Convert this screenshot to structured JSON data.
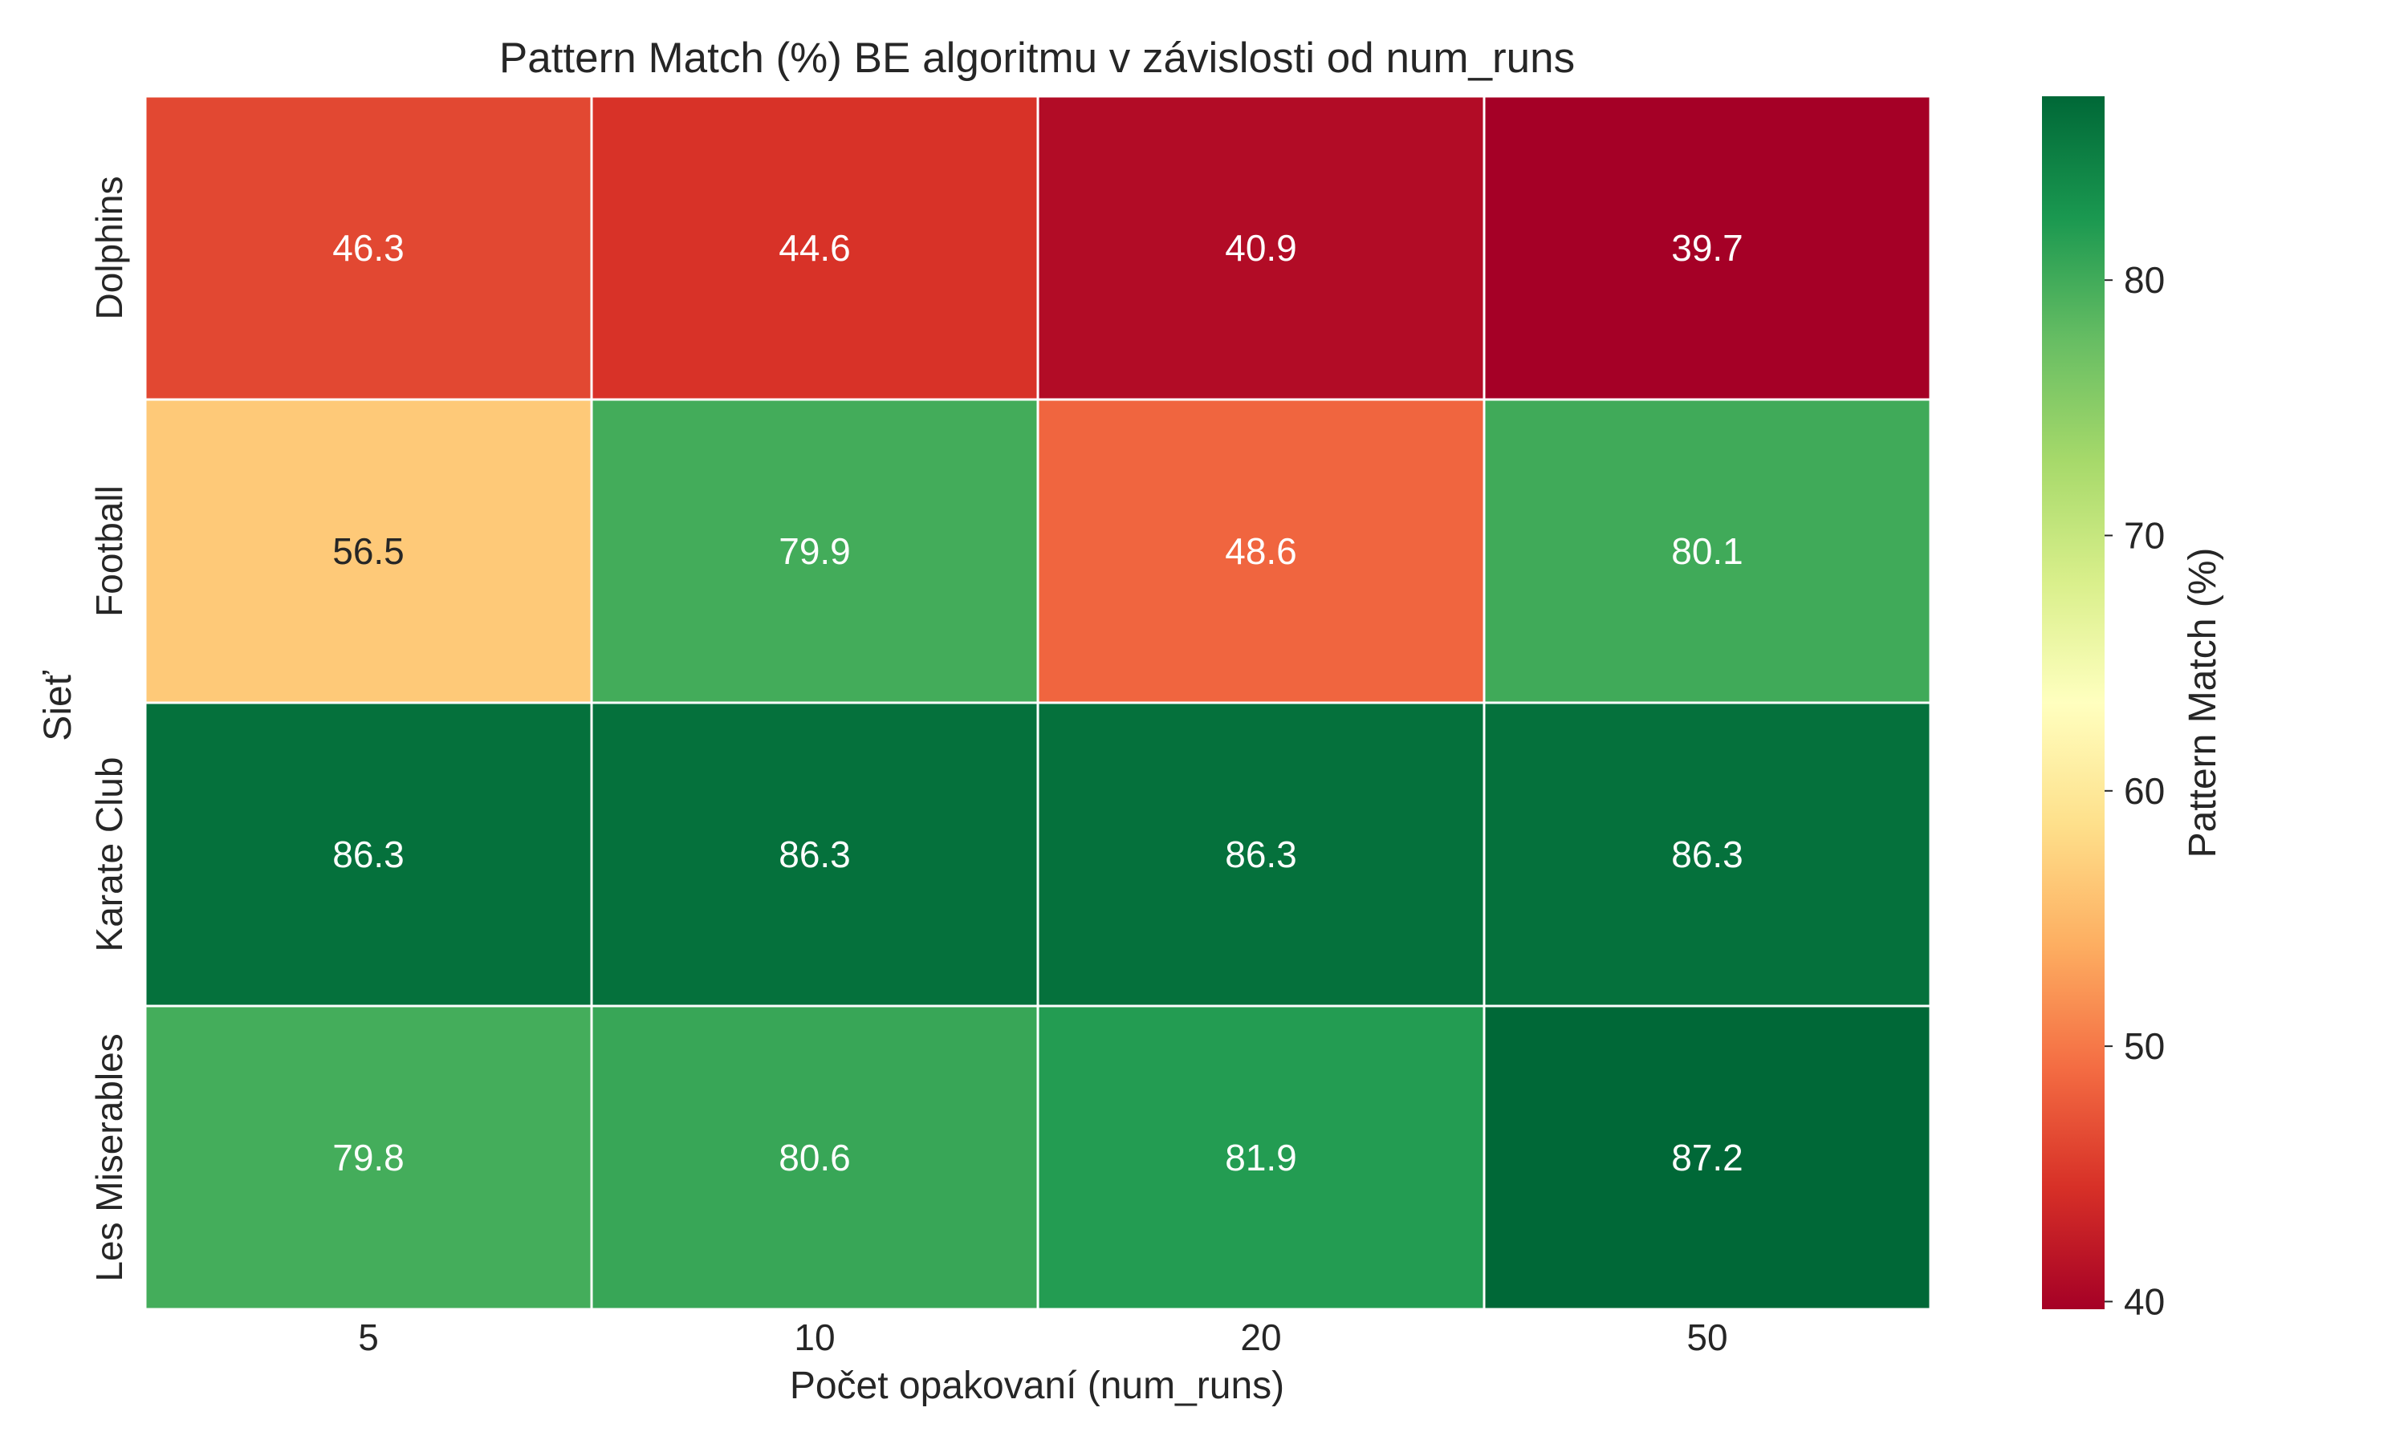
{
  "chart_data": {
    "type": "heatmap",
    "title": "Pattern Match (%) BE algoritmu v závislosti od num_runs",
    "xlabel": "Počet opakovaní (num_runs)",
    "ylabel": "Sieť",
    "x_categories": [
      "5",
      "10",
      "20",
      "50"
    ],
    "y_categories": [
      "Dolphins",
      "Football",
      "Karate Club",
      "Les Miserables"
    ],
    "values": [
      [
        46.3,
        44.6,
        40.9,
        39.7
      ],
      [
        56.5,
        79.9,
        48.6,
        80.1
      ],
      [
        86.3,
        86.3,
        86.3,
        86.3
      ],
      [
        79.8,
        80.6,
        81.9,
        87.2
      ]
    ],
    "colorbar": {
      "label": "Pattern Match (%)",
      "ticks": [
        "40",
        "50",
        "60",
        "70",
        "80"
      ],
      "range": [
        39.7,
        87.2
      ],
      "colormap": "RdYlGn"
    },
    "colormap_stops": [
      "#a50026",
      "#d73027",
      "#f46d43",
      "#fdae61",
      "#fee08b",
      "#ffffbf",
      "#d9ef8b",
      "#a6d96a",
      "#66bd63",
      "#1a9850",
      "#006837"
    ],
    "colors": {
      "text_dark": "#262626",
      "text_light": "#ffffff",
      "grid_line": "#ffffff"
    }
  }
}
